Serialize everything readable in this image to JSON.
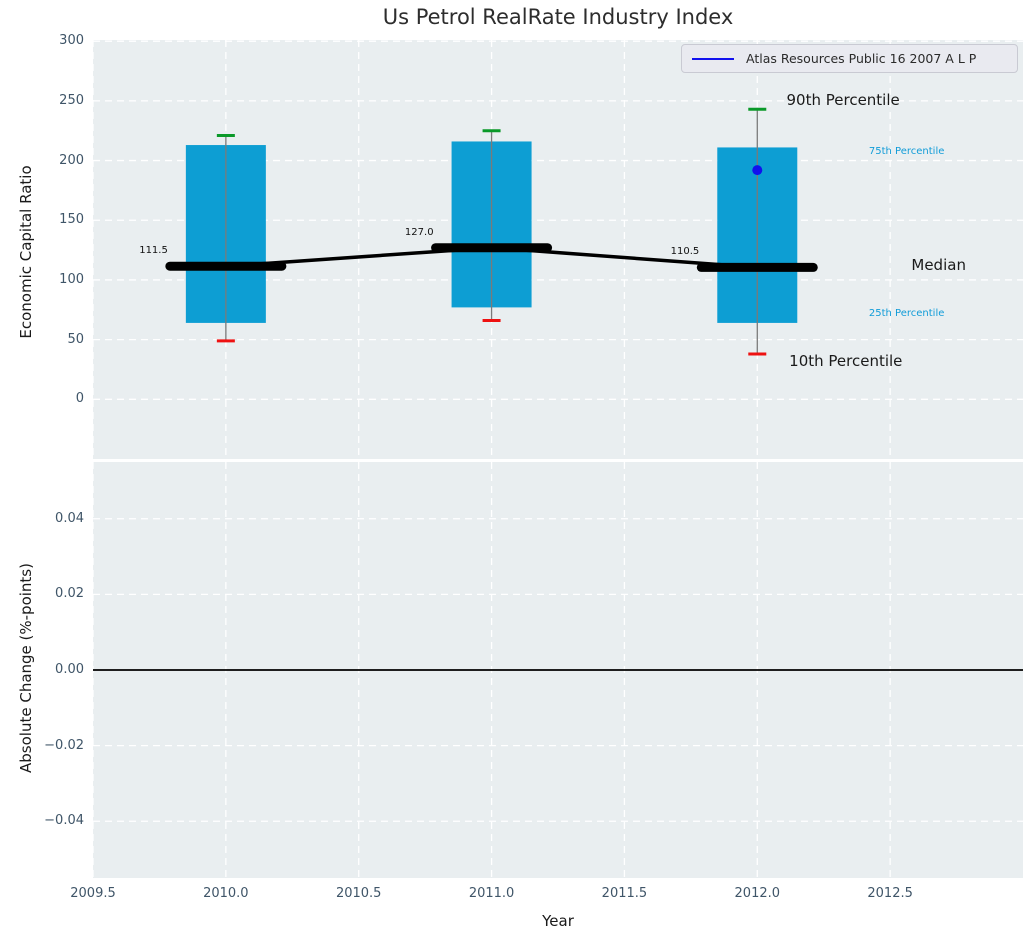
{
  "figure": {
    "title": "Us Petrol RealRate Industry Index",
    "legend": {
      "label": "Atlas Resources Public 16 2007 A L P"
    }
  },
  "colors": {
    "plot_bg": "#e9eef0",
    "grid": "#ffffff",
    "bar": "#0d9ed3",
    "cap_high": "#0a9929",
    "cap_low": "#ee1111",
    "whisker": "#7a7a7a",
    "median_line": "#000000",
    "series_line": "#1111ee",
    "zero_line": "#000000",
    "tick_text": "#3f5568",
    "annotation_blue": "#119cd8",
    "annotation_black": "#1a1a1a"
  },
  "chart_data": [
    {
      "type": "bar",
      "subtype": "percentile-boxplot",
      "title": "Us Petrol RealRate Industry Index",
      "ylabel": "Economic Capital Ratio",
      "xlabel": "",
      "ylim": [
        -50,
        301
      ],
      "xlim": [
        2009.5,
        2013.0
      ],
      "yticks": [
        0,
        50,
        100,
        150,
        200,
        250,
        300
      ],
      "ytick_labels": [
        "0",
        "50",
        "100",
        "150",
        "200",
        "250",
        "300"
      ],
      "xticks": [
        2009.5,
        2010.0,
        2010.5,
        2011.0,
        2011.5,
        2012.0,
        2012.5
      ],
      "grid": true,
      "legend_position": "upper right",
      "categories": [
        2010,
        2011,
        2012
      ],
      "series": [
        {
          "name": "10th Percentile",
          "values": [
            49,
            66,
            38
          ]
        },
        {
          "name": "25th Percentile",
          "values": [
            64,
            77,
            64
          ]
        },
        {
          "name": "Median",
          "values": [
            111.5,
            127.0,
            110.5
          ]
        },
        {
          "name": "75th Percentile",
          "values": [
            213,
            216,
            211
          ]
        },
        {
          "name": "90th Percentile",
          "values": [
            221,
            225,
            243
          ]
        }
      ],
      "median_labels": [
        "111.5",
        "127.0",
        "110.5"
      ],
      "company_series": {
        "name": "Atlas Resources Public 16 2007 A L P",
        "points": [
          {
            "x": 2012,
            "y": 192
          }
        ]
      },
      "annotations": [
        {
          "text": "90th Percentile",
          "x": 2012.11,
          "y": 250,
          "size": "large",
          "color": "#1a1a1a"
        },
        {
          "text": "75th Percentile",
          "x": 2012.42,
          "y": 206,
          "size": "small",
          "color": "#119cd8"
        },
        {
          "text": "Median",
          "x": 2012.58,
          "y": 112,
          "size": "large",
          "color": "#1a1a1a"
        },
        {
          "text": "25th Percentile",
          "x": 2012.42,
          "y": 71,
          "size": "small",
          "color": "#119cd8"
        },
        {
          "text": "10th Percentile",
          "x": 2012.12,
          "y": 31,
          "size": "large",
          "color": "#1a1a1a"
        }
      ]
    },
    {
      "type": "line",
      "subtype": "zero-reference",
      "title": "",
      "ylabel": "Absolute Change (%-points)",
      "xlabel": "Year",
      "ylim": [
        -0.055,
        0.055
      ],
      "xlim": [
        2009.5,
        2013.0
      ],
      "yticks": [
        0.04,
        0.02,
        0,
        -0.02,
        -0.04
      ],
      "ytick_labels": [
        "0.04",
        "0.02",
        "0.00",
        "−0.02",
        "−0.04"
      ],
      "xticks": [
        2009.5,
        2010.0,
        2010.5,
        2011.0,
        2011.5,
        2012.0,
        2012.5
      ],
      "xtick_labels": [
        "2009.5",
        "2010.0",
        "2010.5",
        "2011.0",
        "2011.5",
        "2012.0",
        "2012.5"
      ],
      "grid": true,
      "zero_line": 0.0
    }
  ]
}
